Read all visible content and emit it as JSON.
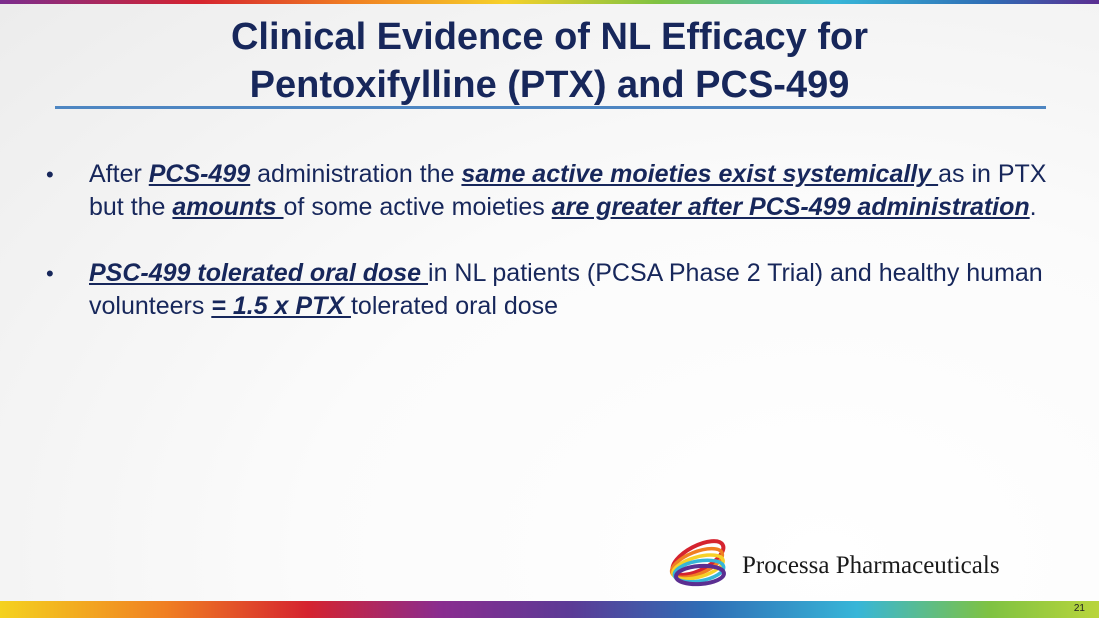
{
  "slide": {
    "title_line1": "Clinical Evidence of NL Efficacy for",
    "title_line2": "Pentoxifylline (PTX) and PCS-499",
    "page_number": "21"
  },
  "bullets": [
    {
      "runs": [
        {
          "text": "After ",
          "emphasis": false
        },
        {
          "text": "PCS-499",
          "emphasis": true
        },
        {
          "text": " administration the ",
          "emphasis": false
        },
        {
          "text": "same active moieties exist systemically ",
          "emphasis": true
        },
        {
          "text": "as in PTX but the ",
          "emphasis": false
        },
        {
          "text": "amounts ",
          "emphasis": true
        },
        {
          "text": "of some active moieties ",
          "emphasis": false
        },
        {
          "text": "are greater after PCS-499 administration",
          "emphasis": true
        },
        {
          "text": ".",
          "emphasis": false
        }
      ]
    },
    {
      "runs": [
        {
          "text": "PSC-499 tolerated oral dose ",
          "emphasis": true
        },
        {
          "text": "in NL patients (PCSA Phase 2 Trial) and healthy human volunteers ",
          "emphasis": false
        },
        {
          "text": "= 1.5 x PTX ",
          "emphasis": true
        },
        {
          "text": "tolerated oral dose",
          "emphasis": false
        }
      ]
    }
  ],
  "logo": {
    "company_name": "Processa Pharmaceuticals",
    "icon": "rainbow-swirl-logo-icon"
  },
  "colors": {
    "title": "#17275b",
    "rule": "#4e86c2"
  }
}
